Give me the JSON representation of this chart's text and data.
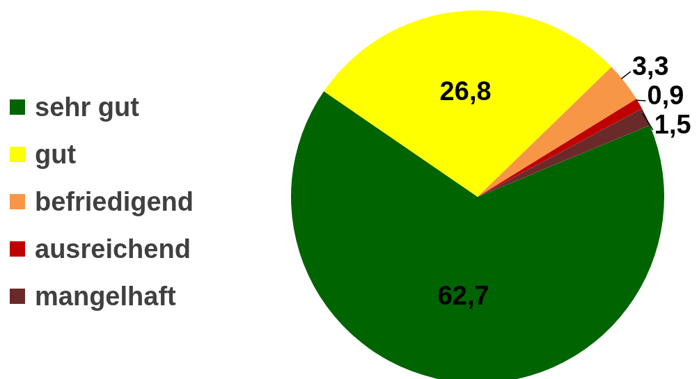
{
  "chart_data": {
    "type": "pie",
    "categories": [
      "sehr gut",
      "gut",
      "befriedigend",
      "ausreichend",
      "mangelhaft"
    ],
    "values": [
      62.7,
      26.8,
      3.3,
      0.9,
      1.5
    ],
    "colors": [
      "#006400",
      "#ffff00",
      "#f79646",
      "#c00000",
      "#6b2a2a"
    ],
    "value_labels": [
      "62,7",
      "26,8",
      "3,3",
      "0,9",
      "1,5"
    ],
    "legend": "left"
  }
}
